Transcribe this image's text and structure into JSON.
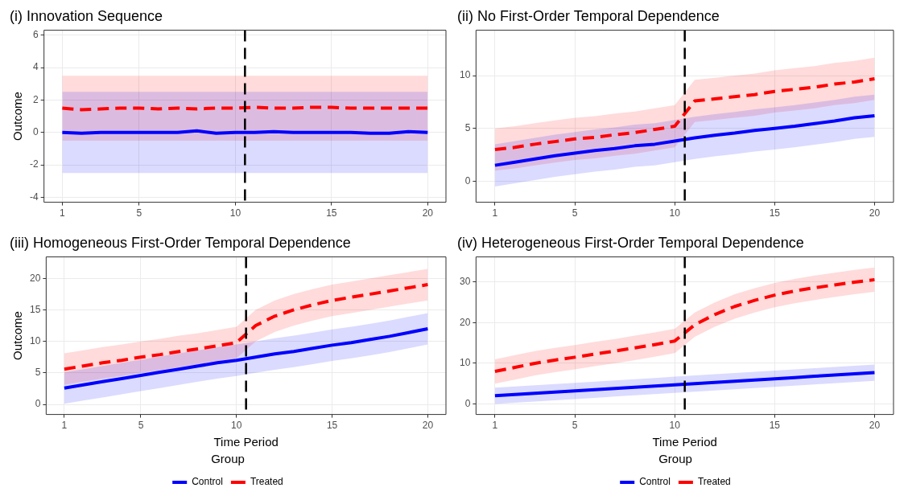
{
  "chart_data": [
    {
      "type": "line",
      "title": "(i) Innovation Sequence",
      "ylabel": "Outcome",
      "x": [
        1,
        2,
        3,
        4,
        5,
        6,
        7,
        8,
        9,
        10,
        11,
        12,
        13,
        14,
        15,
        16,
        17,
        18,
        19,
        20
      ],
      "xlim": [
        0.05,
        20.95
      ],
      "xticks": [
        1,
        5,
        10,
        15,
        20
      ],
      "ylim": [
        -4.3,
        6.3
      ],
      "yticks": [
        -4,
        -2,
        0,
        2,
        4,
        6
      ],
      "grid": true,
      "legend": false,
      "marker": "none",
      "series": [
        {
          "color": "#0000ff",
          "line_style": "solid",
          "values": [
            0,
            -0.05,
            0,
            0,
            0,
            0,
            0,
            0.1,
            -0.05,
            0,
            0,
            0.05,
            0,
            0,
            0,
            0,
            -0.05,
            -0.05,
            0.05,
            0
          ],
          "lower": [
            -2.5,
            -2.5,
            -2.5,
            -2.5,
            -2.5,
            -2.5,
            -2.5,
            -2.5,
            -2.5,
            -2.5,
            -2.5,
            -2.5,
            -2.5,
            -2.5,
            -2.5,
            -2.5,
            -2.5,
            -2.5,
            -2.5,
            -2.5
          ],
          "upper": [
            2.5,
            2.5,
            2.5,
            2.5,
            2.5,
            2.5,
            2.5,
            2.5,
            2.5,
            2.5,
            2.5,
            2.5,
            2.5,
            2.5,
            2.5,
            2.5,
            2.5,
            2.5,
            2.5,
            2.5
          ]
        },
        {
          "color": "#ff0000",
          "line_style": "dashed",
          "values": [
            1.5,
            1.4,
            1.45,
            1.5,
            1.5,
            1.45,
            1.5,
            1.45,
            1.5,
            1.5,
            1.55,
            1.5,
            1.5,
            1.55,
            1.55,
            1.5,
            1.5,
            1.5,
            1.5,
            1.5
          ],
          "lower": [
            -0.5,
            -0.5,
            -0.5,
            -0.5,
            -0.5,
            -0.5,
            -0.5,
            -0.5,
            -0.5,
            -0.5,
            -0.5,
            -0.5,
            -0.5,
            -0.5,
            -0.5,
            -0.5,
            -0.5,
            -0.5,
            -0.5,
            -0.5
          ],
          "upper": [
            3.5,
            3.5,
            3.5,
            3.5,
            3.5,
            3.5,
            3.5,
            3.5,
            3.5,
            3.5,
            3.5,
            3.5,
            3.5,
            3.5,
            3.5,
            3.5,
            3.5,
            3.5,
            3.5,
            3.5
          ]
        }
      ],
      "ref_lines": [
        {
          "axis": "x",
          "value": 10.5,
          "color": "#000000",
          "line_style": "dashed"
        }
      ]
    },
    {
      "type": "line",
      "title": "(ii) No First-Order Temporal Dependence",
      "x": [
        1,
        2,
        3,
        4,
        5,
        6,
        7,
        8,
        9,
        10,
        11,
        12,
        13,
        14,
        15,
        16,
        17,
        18,
        19,
        20
      ],
      "xlim": [
        0.05,
        20.95
      ],
      "xticks": [
        1,
        5,
        10,
        15,
        20
      ],
      "ylim": [
        -2,
        14.3
      ],
      "yticks": [
        0,
        5,
        10
      ],
      "grid": true,
      "legend": false,
      "marker": "none",
      "series": [
        {
          "color": "#0000ff",
          "line_style": "solid",
          "values": [
            1.5,
            1.8,
            2.1,
            2.4,
            2.65,
            2.9,
            3.1,
            3.35,
            3.5,
            3.8,
            4.1,
            4.35,
            4.55,
            4.8,
            5.0,
            5.2,
            5.45,
            5.7,
            6.0,
            6.2
          ],
          "lower": [
            -0.5,
            -0.2,
            0.1,
            0.4,
            0.65,
            0.9,
            1.1,
            1.35,
            1.5,
            1.8,
            2.1,
            2.35,
            2.55,
            2.8,
            3.0,
            3.2,
            3.45,
            3.7,
            4.0,
            4.2
          ],
          "upper": [
            3.5,
            3.8,
            4.1,
            4.4,
            4.65,
            4.9,
            5.1,
            5.35,
            5.5,
            5.8,
            6.1,
            6.35,
            6.55,
            6.8,
            7.0,
            7.2,
            7.45,
            7.7,
            8.0,
            8.2
          ]
        },
        {
          "color": "#ff0000",
          "line_style": "dashed",
          "values": [
            3.0,
            3.2,
            3.5,
            3.75,
            4.0,
            4.15,
            4.4,
            4.6,
            4.9,
            5.2,
            7.6,
            7.8,
            8.0,
            8.2,
            8.5,
            8.7,
            8.9,
            9.2,
            9.4,
            9.7
          ],
          "lower": [
            1.0,
            1.2,
            1.5,
            1.75,
            2.0,
            2.15,
            2.4,
            2.6,
            2.9,
            3.2,
            5.6,
            5.8,
            6.0,
            6.2,
            6.5,
            6.7,
            6.9,
            7.2,
            7.4,
            7.7
          ],
          "upper": [
            5.0,
            5.2,
            5.5,
            5.75,
            6.0,
            6.15,
            6.4,
            6.6,
            6.9,
            7.2,
            9.6,
            9.8,
            10.0,
            10.2,
            10.5,
            10.7,
            10.9,
            11.2,
            11.4,
            11.7
          ]
        }
      ],
      "ref_lines": [
        {
          "axis": "x",
          "value": 10.5,
          "color": "#000000",
          "line_style": "dashed"
        }
      ]
    },
    {
      "type": "line",
      "title": "(iii) Homogeneous First-Order Temporal Dependence",
      "xlabel": "Time Period",
      "ylabel": "Outcome",
      "legend_title": "Group",
      "x": [
        1,
        2,
        3,
        4,
        5,
        6,
        7,
        8,
        9,
        10,
        11,
        12,
        13,
        14,
        15,
        16,
        17,
        18,
        19,
        20
      ],
      "xlim": [
        0.05,
        20.95
      ],
      "xticks": [
        1,
        5,
        10,
        15,
        20
      ],
      "ylim": [
        -1.6,
        23.4
      ],
      "yticks": [
        0,
        5,
        10,
        15,
        20
      ],
      "grid": true,
      "legend": "bottom",
      "marker": "none",
      "series": [
        {
          "name": "Control",
          "color": "#0000ff",
          "line_style": "solid",
          "values": [
            2.6,
            3.1,
            3.6,
            4.1,
            4.6,
            5.1,
            5.6,
            6.1,
            6.6,
            7.0,
            7.5,
            8.0,
            8.4,
            8.9,
            9.4,
            9.8,
            10.3,
            10.8,
            11.4,
            12.0
          ],
          "lower": [
            0.1,
            0.6,
            1.1,
            1.6,
            2.1,
            2.6,
            3.1,
            3.6,
            4.1,
            4.5,
            5.0,
            5.5,
            5.9,
            6.4,
            6.9,
            7.3,
            7.8,
            8.3,
            8.9,
            9.5
          ],
          "upper": [
            5.1,
            5.6,
            6.1,
            6.6,
            7.1,
            7.6,
            8.1,
            8.6,
            9.1,
            9.5,
            10.0,
            10.5,
            10.9,
            11.4,
            11.9,
            12.3,
            12.8,
            13.3,
            13.9,
            14.5
          ]
        },
        {
          "name": "Treated",
          "color": "#ff0000",
          "line_style": "dashed",
          "values": [
            5.6,
            6.1,
            6.6,
            7.0,
            7.5,
            7.9,
            8.4,
            8.8,
            9.3,
            9.8,
            12.5,
            14.0,
            15.0,
            15.8,
            16.5,
            17.0,
            17.5,
            18.0,
            18.5,
            19.0
          ],
          "lower": [
            3.1,
            3.6,
            4.1,
            4.5,
            5.0,
            5.4,
            5.9,
            6.3,
            6.8,
            7.3,
            10.0,
            11.5,
            12.5,
            13.3,
            14.0,
            14.5,
            15.0,
            15.5,
            16.0,
            16.5
          ],
          "upper": [
            8.1,
            8.6,
            9.1,
            9.5,
            10.0,
            10.4,
            10.9,
            11.3,
            11.8,
            12.3,
            15.0,
            16.5,
            17.5,
            18.3,
            19.0,
            19.5,
            20.0,
            20.5,
            21.0,
            21.5
          ]
        }
      ],
      "ref_lines": [
        {
          "axis": "x",
          "value": 10.5,
          "color": "#000000",
          "line_style": "dashed"
        }
      ]
    },
    {
      "type": "line",
      "title": "(iv) Heterogeneous First-Order Temporal Dependence",
      "xlabel": "Time Period",
      "legend_title": "Group",
      "x": [
        1,
        2,
        3,
        4,
        5,
        6,
        7,
        8,
        9,
        10,
        11,
        12,
        13,
        14,
        15,
        16,
        17,
        18,
        19,
        20
      ],
      "xlim": [
        0.05,
        20.95
      ],
      "xticks": [
        1,
        5,
        10,
        15,
        20
      ],
      "ylim": [
        -2.6,
        36.2
      ],
      "yticks": [
        0,
        10,
        20,
        30
      ],
      "grid": true,
      "legend": "bottom",
      "marker": "none",
      "series": [
        {
          "name": "Control",
          "color": "#0000ff",
          "line_style": "solid",
          "values": [
            2.0,
            2.3,
            2.6,
            2.9,
            3.2,
            3.5,
            3.8,
            4.1,
            4.4,
            4.7,
            5.0,
            5.3,
            5.6,
            5.9,
            6.2,
            6.5,
            6.8,
            7.1,
            7.4,
            7.7
          ],
          "lower": [
            0.0,
            0.3,
            0.6,
            0.9,
            1.2,
            1.5,
            1.8,
            2.1,
            2.4,
            2.7,
            3.0,
            3.3,
            3.6,
            3.9,
            4.2,
            4.5,
            4.8,
            5.1,
            5.4,
            5.7
          ],
          "upper": [
            4.0,
            4.3,
            4.6,
            4.9,
            5.2,
            5.5,
            5.8,
            6.1,
            6.4,
            6.7,
            7.0,
            7.3,
            7.6,
            7.9,
            8.2,
            8.5,
            8.8,
            9.1,
            9.4,
            9.7
          ]
        },
        {
          "name": "Treated",
          "color": "#ff0000",
          "line_style": "dashed",
          "values": [
            8.0,
            9.0,
            10.0,
            10.8,
            11.5,
            12.3,
            13.0,
            13.8,
            14.6,
            15.5,
            19.5,
            22.0,
            24.0,
            25.5,
            26.8,
            27.8,
            28.6,
            29.3,
            30.0,
            30.6
          ],
          "lower": [
            5.0,
            6.0,
            7.0,
            7.8,
            8.5,
            9.3,
            10.0,
            10.8,
            11.6,
            12.5,
            16.5,
            19.0,
            21.0,
            22.5,
            23.8,
            24.8,
            25.6,
            26.3,
            27.0,
            27.6
          ],
          "upper": [
            11.0,
            12.0,
            13.0,
            13.8,
            14.5,
            15.3,
            16.0,
            16.8,
            17.6,
            18.5,
            22.5,
            25.0,
            27.0,
            28.5,
            29.8,
            30.8,
            31.6,
            32.3,
            33.0,
            33.6
          ]
        }
      ],
      "ref_lines": [
        {
          "axis": "x",
          "value": 10.5,
          "color": "#000000",
          "line_style": "dashed"
        }
      ]
    }
  ]
}
